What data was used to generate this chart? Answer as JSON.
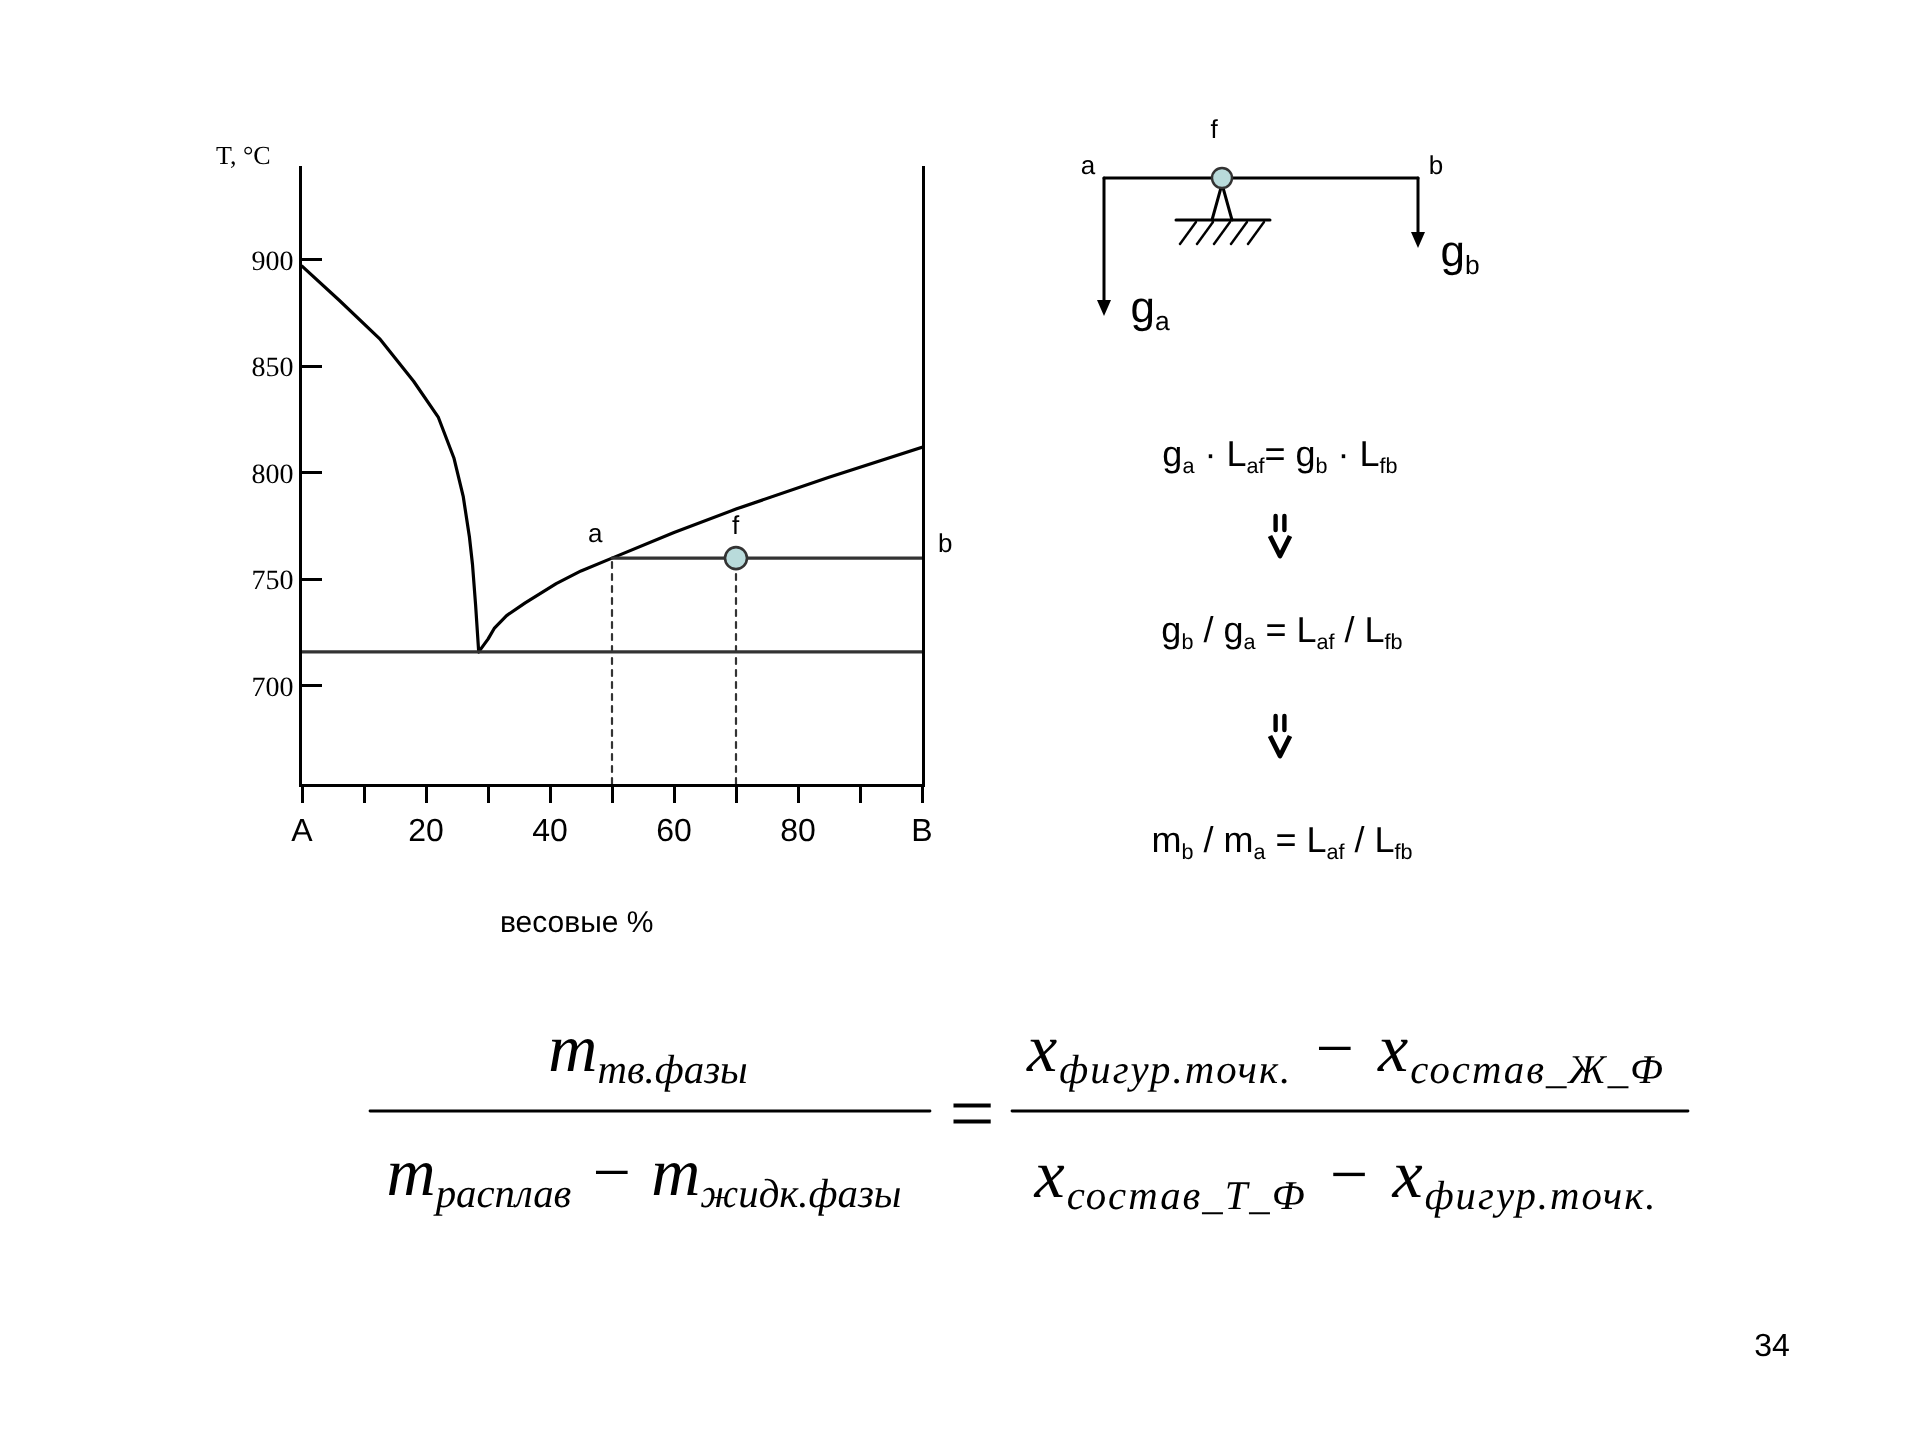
{
  "chart_data": {
    "type": "line",
    "ylabel": "T, °C",
    "xlabel": "весовые %",
    "xlim": [
      0,
      100
    ],
    "ylim": [
      654,
      944
    ],
    "xticks": [
      {
        "value": 0,
        "label": "A"
      },
      {
        "value": 10,
        "label": null
      },
      20,
      {
        "value": 30,
        "label": null
      },
      40,
      {
        "value": 50,
        "label": null
      },
      60,
      {
        "value": 70,
        "label": null
      },
      80,
      {
        "value": 90,
        "label": null
      },
      {
        "value": 100,
        "label": "B"
      }
    ],
    "yticks": [
      700,
      750,
      800,
      850,
      900
    ],
    "series": [
      {
        "color": "#000000",
        "x": [
          0,
          6,
          12.5,
          18,
          22,
          24.5,
          26,
          27,
          27.5,
          28,
          28.5
        ],
        "values": [
          897,
          881,
          863,
          843,
          826,
          807,
          789,
          770,
          757,
          738,
          716
        ]
      },
      {
        "color": "#000000",
        "x": [
          28.5,
          30,
          31,
          33,
          36,
          41,
          45,
          50,
          60,
          70,
          85,
          100
        ],
        "values": [
          716,
          722,
          727,
          733,
          739,
          748,
          754,
          760,
          772,
          783,
          798,
          812
        ]
      },
      {
        "color": "#333333",
        "x": [
          0,
          100
        ],
        "values": [
          716,
          716
        ]
      },
      {
        "color": "#333333",
        "x": [
          50,
          100
        ],
        "values": [
          760,
          760
        ]
      },
      {
        "color": "#333333",
        "x": [
          50,
          50
        ],
        "values": [
          654,
          760
        ],
        "line_style": "dotted"
      },
      {
        "color": "#333333",
        "x": [
          70,
          70
        ],
        "values": [
          654,
          760
        ],
        "line_style": "dotted"
      },
      {
        "type": "scatter",
        "marker": "circle",
        "color": "#b9dbdb",
        "x": [
          70
        ],
        "values": [
          760
        ]
      }
    ],
    "annotations": [
      {
        "text": "a",
        "x": 50,
        "y": 760
      },
      {
        "text": "f",
        "x": 70,
        "y": 760
      },
      {
        "text": "b",
        "x": 100,
        "y": 760
      },
      "f",
      "a",
      "b",
      "g$_{a}$",
      "g$_{b}$",
      "g$_{a}$ · L$_{af}$= g$_{b}$ · L$_{fb}$",
      "g$_{b}$ / g$_{a}$ = L$_{af}$ / L$_{fb}$",
      "m$_{b}$ / m$_{a}$ = L$_{af}$ / L$_{fb}$",
      "m$_{тв.фазы}$",
      "m$_{расплав}$ − m$_{жидк.фазы}$",
      "=",
      "x$_{фигур.точк.}$ − x$_{состав_Ж_Ф}$",
      "x$_{состав_Т_Ф}$ − x$_{фигур.точк.}$",
      "34"
    ]
  }
}
